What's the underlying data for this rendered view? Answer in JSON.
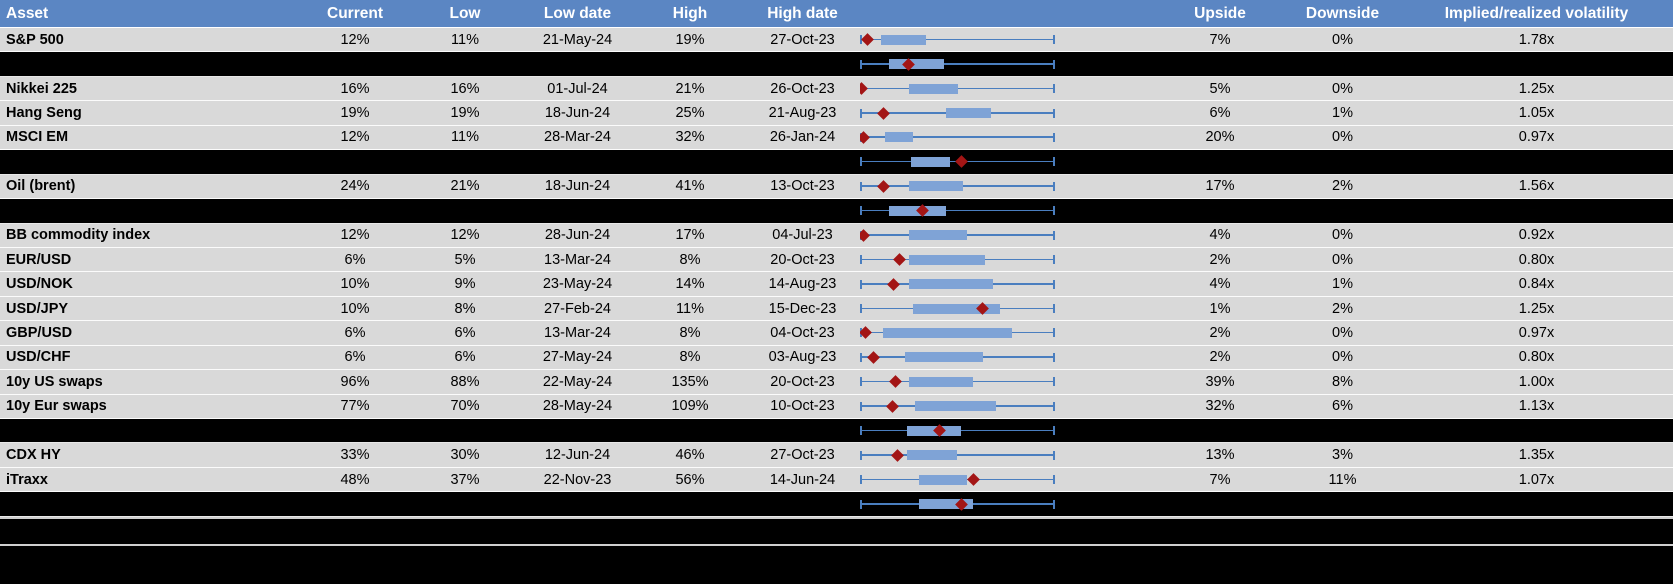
{
  "colors": {
    "header_bg": "#5b86c3",
    "header_text": "#ffffff",
    "row_bg": "#d9d9d9",
    "summary_bg": "#000000",
    "box_fill": "#7fa3d6",
    "whisker": "#4a7ebf",
    "marker": "#a31515"
  },
  "chart_data": {
    "type": "table",
    "embedded_chart_type": "boxplot",
    "boxplot_note": "Each row shows a horizontal range whisker spanning the full low-high range (0 to 1), a blue box for the interquartile range, and a dark-red diamond marking the current level. box_lo/box_hi/marker are fractions of the whisker span.",
    "columns": [
      "Asset",
      "Current",
      "Low",
      "Low date",
      "High",
      "High date",
      "",
      "Upside",
      "Downside",
      "Implied/realized volatility"
    ],
    "rows": [
      {
        "type": "data",
        "asset": "S&P 500",
        "current": "12%",
        "low": "11%",
        "low_date": "21-May-24",
        "high": "19%",
        "high_date": "27-Oct-23",
        "upside": "7%",
        "downside": "0%",
        "implied_realized": "1.78x",
        "box": {
          "whisker_lo": 0,
          "whisker_hi": 1,
          "box_lo": 0.11,
          "box_hi": 0.34,
          "marker": 0.04
        }
      },
      {
        "type": "summary",
        "box": {
          "whisker_lo": 0,
          "whisker_hi": 1,
          "box_lo": 0.15,
          "box_hi": 0.43,
          "marker": 0.25
        }
      },
      {
        "type": "data",
        "asset": "Nikkei 225",
        "current": "16%",
        "low": "16%",
        "low_date": "01-Jul-24",
        "high": "21%",
        "high_date": "26-Oct-23",
        "upside": "5%",
        "downside": "0%",
        "implied_realized": "1.25x",
        "box": {
          "whisker_lo": 0,
          "whisker_hi": 1,
          "box_lo": 0.25,
          "box_hi": 0.5,
          "marker": 0.01
        }
      },
      {
        "type": "data",
        "asset": "Hang Seng",
        "current": "19%",
        "low": "19%",
        "low_date": "18-Jun-24",
        "high": "25%",
        "high_date": "21-Aug-23",
        "upside": "6%",
        "downside": "1%",
        "implied_realized": "1.05x",
        "box": {
          "whisker_lo": 0,
          "whisker_hi": 1,
          "box_lo": 0.44,
          "box_hi": 0.67,
          "marker": 0.12
        }
      },
      {
        "type": "data",
        "asset": "MSCI EM",
        "current": "12%",
        "low": "11%",
        "low_date": "28-Mar-24",
        "high": "32%",
        "high_date": "26-Jan-24",
        "upside": "20%",
        "downside": "0%",
        "implied_realized": "0.97x",
        "box": {
          "whisker_lo": 0,
          "whisker_hi": 1,
          "box_lo": 0.13,
          "box_hi": 0.27,
          "marker": 0.02
        }
      },
      {
        "type": "summary",
        "box": {
          "whisker_lo": 0,
          "whisker_hi": 1,
          "box_lo": 0.26,
          "box_hi": 0.46,
          "marker": 0.52
        }
      },
      {
        "type": "data",
        "asset": "Oil (brent)",
        "current": "24%",
        "low": "21%",
        "low_date": "18-Jun-24",
        "high": "41%",
        "high_date": "13-Oct-23",
        "upside": "17%",
        "downside": "2%",
        "implied_realized": "1.56x",
        "box": {
          "whisker_lo": 0,
          "whisker_hi": 1,
          "box_lo": 0.25,
          "box_hi": 0.53,
          "marker": 0.12
        }
      },
      {
        "type": "summary",
        "box": {
          "whisker_lo": 0,
          "whisker_hi": 1,
          "box_lo": 0.15,
          "box_hi": 0.44,
          "marker": 0.32
        }
      },
      {
        "type": "data",
        "asset": "BB commodity index",
        "current": "12%",
        "low": "12%",
        "low_date": "28-Jun-24",
        "high": "17%",
        "high_date": "04-Jul-23",
        "upside": "4%",
        "downside": "0%",
        "implied_realized": "0.92x",
        "box": {
          "whisker_lo": 0,
          "whisker_hi": 1,
          "box_lo": 0.25,
          "box_hi": 0.55,
          "marker": 0.02
        }
      },
      {
        "type": "data",
        "asset": "EUR/USD",
        "current": "6%",
        "low": "5%",
        "low_date": "13-Mar-24",
        "high": "8%",
        "high_date": "20-Oct-23",
        "upside": "2%",
        "downside": "0%",
        "implied_realized": "0.80x",
        "box": {
          "whisker_lo": 0,
          "whisker_hi": 1,
          "box_lo": 0.25,
          "box_hi": 0.64,
          "marker": 0.2
        }
      },
      {
        "type": "data",
        "asset": "USD/NOK",
        "current": "10%",
        "low": "9%",
        "low_date": "23-May-24",
        "high": "14%",
        "high_date": "14-Aug-23",
        "upside": "4%",
        "downside": "1%",
        "implied_realized": "0.84x",
        "box": {
          "whisker_lo": 0,
          "whisker_hi": 1,
          "box_lo": 0.25,
          "box_hi": 0.68,
          "marker": 0.17
        }
      },
      {
        "type": "data",
        "asset": "USD/JPY",
        "current": "10%",
        "low": "8%",
        "low_date": "27-Feb-24",
        "high": "11%",
        "high_date": "15-Dec-23",
        "upside": "1%",
        "downside": "2%",
        "implied_realized": "1.25x",
        "box": {
          "whisker_lo": 0,
          "whisker_hi": 1,
          "box_lo": 0.27,
          "box_hi": 0.72,
          "marker": 0.63
        }
      },
      {
        "type": "data",
        "asset": "GBP/USD",
        "current": "6%",
        "low": "6%",
        "low_date": "13-Mar-24",
        "high": "8%",
        "high_date": "04-Oct-23",
        "upside": "2%",
        "downside": "0%",
        "implied_realized": "0.97x",
        "box": {
          "whisker_lo": 0,
          "whisker_hi": 1,
          "box_lo": 0.12,
          "box_hi": 0.78,
          "marker": 0.03
        }
      },
      {
        "type": "data",
        "asset": "USD/CHF",
        "current": "6%",
        "low": "6%",
        "low_date": "27-May-24",
        "high": "8%",
        "high_date": "03-Aug-23",
        "upside": "2%",
        "downside": "0%",
        "implied_realized": "0.80x",
        "box": {
          "whisker_lo": 0,
          "whisker_hi": 1,
          "box_lo": 0.23,
          "box_hi": 0.63,
          "marker": 0.07
        }
      },
      {
        "type": "data",
        "asset": "10y US swaps",
        "current": "96%",
        "low": "88%",
        "low_date": "22-May-24",
        "high": "135%",
        "high_date": "20-Oct-23",
        "upside": "39%",
        "downside": "8%",
        "implied_realized": "1.00x",
        "box": {
          "whisker_lo": 0,
          "whisker_hi": 1,
          "box_lo": 0.25,
          "box_hi": 0.58,
          "marker": 0.18
        }
      },
      {
        "type": "data",
        "asset": "10y Eur swaps",
        "current": "77%",
        "low": "70%",
        "low_date": "28-May-24",
        "high": "109%",
        "high_date": "10-Oct-23",
        "upside": "32%",
        "downside": "6%",
        "implied_realized": "1.13x",
        "box": {
          "whisker_lo": 0,
          "whisker_hi": 1,
          "box_lo": 0.28,
          "box_hi": 0.7,
          "marker": 0.165
        }
      },
      {
        "type": "summary",
        "box": {
          "whisker_lo": 0,
          "whisker_hi": 1,
          "box_lo": 0.24,
          "box_hi": 0.52,
          "marker": 0.41
        }
      },
      {
        "type": "data",
        "asset": "CDX HY",
        "current": "33%",
        "low": "30%",
        "low_date": "12-Jun-24",
        "high": "46%",
        "high_date": "27-Oct-23",
        "upside": "13%",
        "downside": "3%",
        "implied_realized": "1.35x",
        "box": {
          "whisker_lo": 0,
          "whisker_hi": 1,
          "box_lo": 0.24,
          "box_hi": 0.5,
          "marker": 0.19
        }
      },
      {
        "type": "data",
        "asset": "iTraxx",
        "current": "48%",
        "low": "37%",
        "low_date": "22-Nov-23",
        "high": "56%",
        "high_date": "14-Jun-24",
        "upside": "7%",
        "downside": "11%",
        "implied_realized": "1.07x",
        "box": {
          "whisker_lo": 0,
          "whisker_hi": 1,
          "box_lo": 0.3,
          "box_hi": 0.55,
          "marker": 0.58
        }
      },
      {
        "type": "summary",
        "box": {
          "whisker_lo": 0,
          "whisker_hi": 1,
          "box_lo": 0.3,
          "box_hi": 0.58,
          "marker": 0.52
        }
      },
      {
        "type": "spacer"
      },
      {
        "type": "spacer"
      }
    ]
  }
}
